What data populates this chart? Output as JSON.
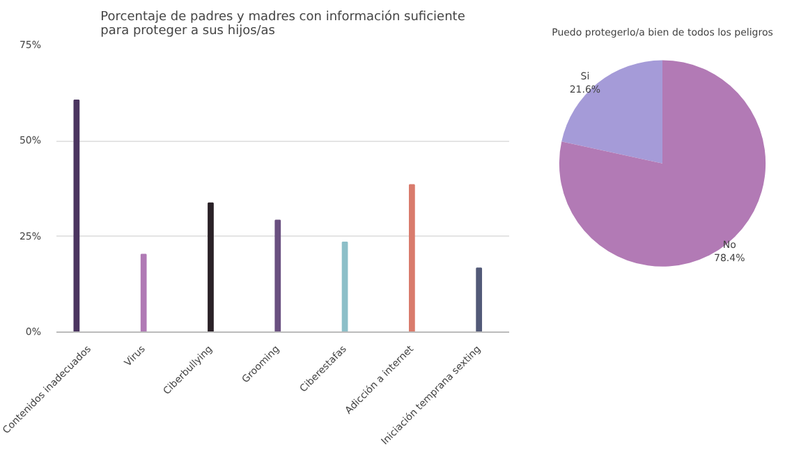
{
  "chart_data": [
    {
      "type": "bar",
      "title": "Porcentaje de padres y madres con información suficiente\npara proteger a sus hijos/as",
      "categories": [
        "Contenidos inadecuados",
        "Virus",
        "Ciberbullying",
        "Grooming",
        "Ciberestafas",
        "Adicción a internet",
        "Iniciación temprana sexting"
      ],
      "values": [
        60.6,
        20.3,
        33.7,
        29.2,
        23.5,
        38.5,
        16.7
      ],
      "colors": [
        "#4b3560",
        "#b07ab5",
        "#2a2127",
        "#6a5080",
        "#8dbfc8",
        "#d97b6c",
        "#535a78"
      ],
      "ylim": [
        0,
        75
      ],
      "yticks": [
        {
          "value": 0,
          "label": "0%"
        },
        {
          "value": 25,
          "label": "25%"
        },
        {
          "value": 50,
          "label": "50%"
        },
        {
          "value": 75,
          "label": "75%"
        }
      ],
      "grid": "y"
    },
    {
      "type": "pie",
      "title": "Puedo protegerlo/a bien de todos los peligros",
      "categories": [
        "Si",
        "No"
      ],
      "values": [
        21.6,
        78.4
      ],
      "colors": [
        "#a59bd8",
        "#b27ab5"
      ],
      "value_labels": [
        "21.6%",
        "78.4%"
      ]
    }
  ]
}
